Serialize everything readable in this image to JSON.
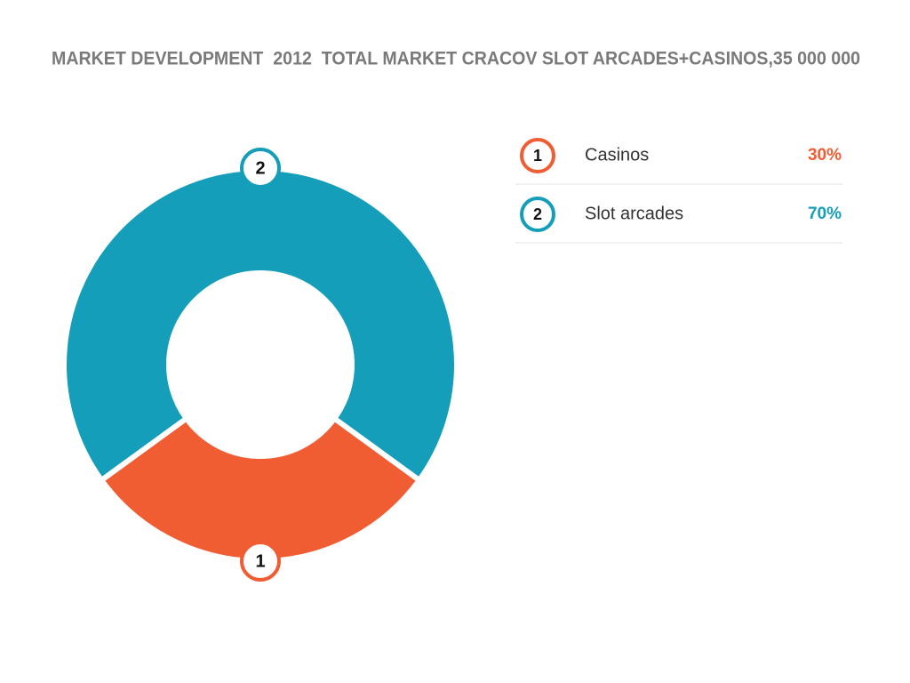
{
  "chart_data": {
    "type": "donut",
    "title": "MARKET DEVELOPMENT  2012  TOTAL MARKET CRACOV SLOT ARCADES+CASINOS,35 000 000",
    "categories": [
      "Casinos",
      "Slot arcades"
    ],
    "values": [
      30,
      70
    ],
    "value_labels": [
      "30%",
      "70%"
    ],
    "segment_numbers": [
      "1",
      "2"
    ],
    "colors": [
      "#f05d33",
      "#149eba"
    ]
  }
}
